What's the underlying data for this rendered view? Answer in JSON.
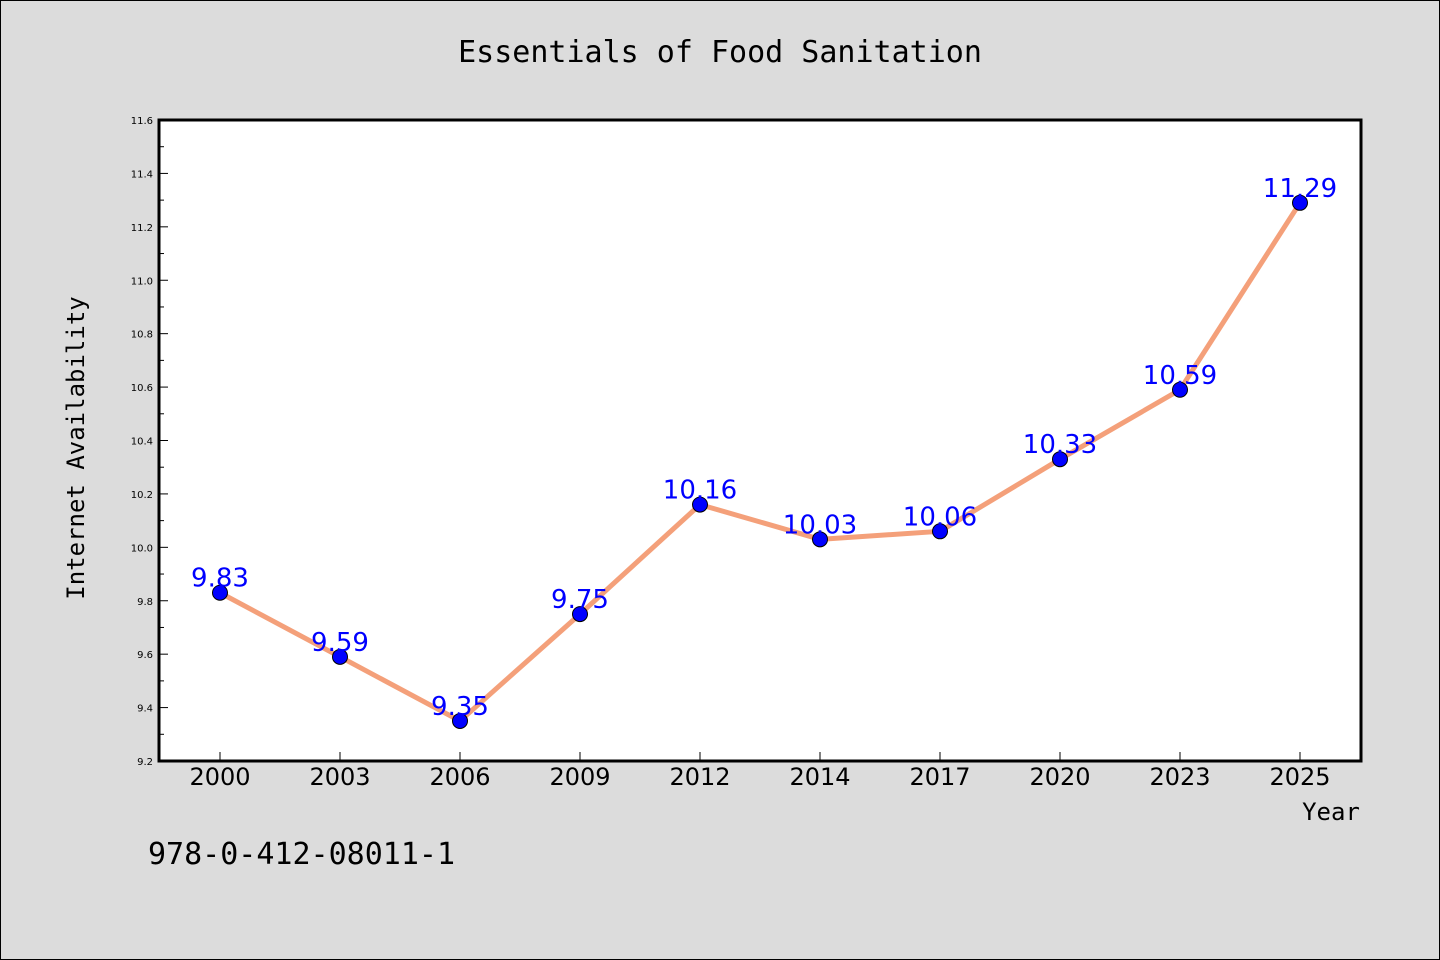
{
  "chart_data": {
    "type": "line",
    "title": "Essentials of Food Sanitation",
    "xlabel": "Year",
    "ylabel": "Internet Availability",
    "categories": [
      "2000",
      "2003",
      "2006",
      "2009",
      "2012",
      "2014",
      "2017",
      "2020",
      "2023",
      "2025"
    ],
    "values": [
      9.83,
      9.59,
      9.35,
      9.75,
      10.16,
      10.03,
      10.06,
      10.33,
      10.59,
      11.29
    ],
    "data_labels": [
      "9.83",
      "9.59",
      "9.35",
      "9.75",
      "10.16",
      "10.03",
      "10.06",
      "10.33",
      "10.59",
      "11.29"
    ],
    "ylim": [
      9.2,
      11.6
    ],
    "yticks": [
      "9.2",
      "9.4",
      "9.6",
      "9.8",
      "10.0",
      "10.2",
      "10.4",
      "10.6",
      "10.8",
      "11.0",
      "11.2",
      "11.4",
      "11.6"
    ],
    "grid": false,
    "legend": "none",
    "colors": {
      "line": "#f4a07a",
      "marker_fill": "#0000ff",
      "marker_edge": "#000000",
      "data_label": "#0000ff",
      "plot_background": "#ffffff",
      "figure_background": "#dcdcdc"
    }
  },
  "footer_text": "978-0-412-08011-1"
}
